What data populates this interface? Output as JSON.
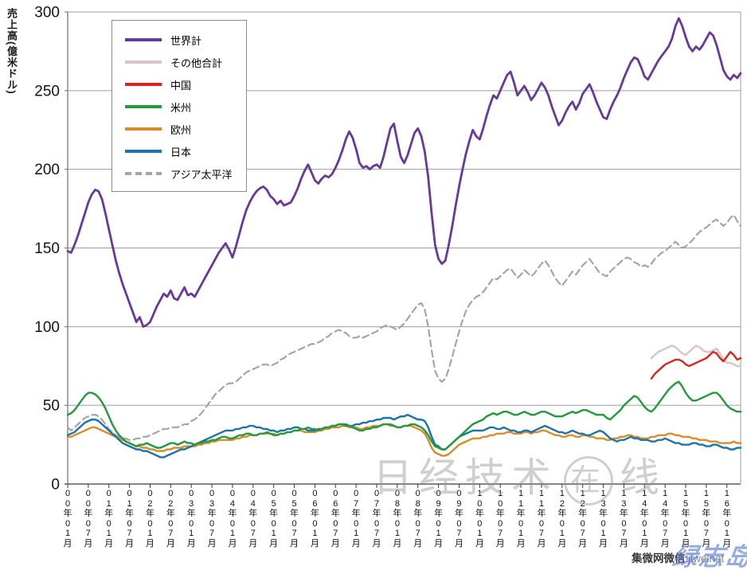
{
  "watermarks": {
    "center_prefix": "日经技术",
    "center_circled": "在",
    "center_suffix": "线",
    "bottom_right_cn": "集微网微信",
    "bottom_right_en": ":jiweinet",
    "bottom_right_script": "绿志岛"
  },
  "chart_data": {
    "type": "line",
    "title": "",
    "y_axis": {
      "label": "売上高(億米ドル)",
      "min": 0,
      "max": 300,
      "tick_step": 50
    },
    "y_tick_labels": [
      "300",
      "250",
      "200",
      "150",
      "100",
      "50",
      "0"
    ],
    "x_tick_labels": [
      "00年01月",
      "00年07月",
      "01年01月",
      "01年07月",
      "02年01月",
      "02年07月",
      "03年01月",
      "03年07月",
      "04年01月",
      "04年07月",
      "05年01月",
      "05年07月",
      "06年01月",
      "06年07月",
      "07年01月",
      "07年07月",
      "08年01月",
      "08年07月",
      "09年01月",
      "09年07月",
      "10年01月",
      "10年07月",
      "11年01月",
      "11年07月",
      "12年01月",
      "12年07月",
      "13年01月",
      "13年07月",
      "14年01月",
      "14年07月",
      "15年01月",
      "15年07月",
      "16年01月"
    ],
    "x_start": "2000-01",
    "months_total": 197,
    "grid": true,
    "legend_position": "top-left-inside",
    "series": [
      {
        "key": "world",
        "name": "世界計",
        "color": "#67399a",
        "width": 2.8,
        "dash": null,
        "start": 0,
        "values": [
          148,
          147,
          152,
          158,
          165,
          172,
          179,
          184,
          187,
          186,
          181,
          172,
          162,
          152,
          142,
          134,
          127,
          121,
          115,
          109,
          103,
          106,
          100,
          101,
          103,
          108,
          113,
          117,
          121,
          119,
          123,
          118,
          117,
          121,
          125,
          120,
          121,
          119,
          123,
          127,
          131,
          135,
          139,
          143,
          147,
          150,
          153,
          149,
          144,
          151,
          159,
          167,
          174,
          179,
          183,
          186,
          188,
          189,
          187,
          183,
          181,
          178,
          180,
          177,
          178,
          179,
          183,
          188,
          194,
          199,
          203,
          198,
          193,
          191,
          194,
          196,
          195,
          197,
          201,
          206,
          212,
          219,
          224,
          220,
          213,
          204,
          201,
          202,
          200,
          202,
          203,
          201,
          208,
          217,
          226,
          229,
          218,
          208,
          204,
          209,
          216,
          223,
          226,
          221,
          211,
          195,
          172,
          152,
          143,
          140,
          142,
          152,
          164,
          177,
          189,
          200,
          210,
          218,
          225,
          221,
          219,
          226,
          234,
          241,
          247,
          245,
          250,
          255,
          260,
          262,
          255,
          247,
          250,
          253,
          249,
          244,
          247,
          251,
          255,
          252,
          247,
          240,
          234,
          228,
          231,
          236,
          240,
          243,
          238,
          242,
          248,
          251,
          254,
          249,
          243,
          238,
          233,
          232,
          238,
          243,
          247,
          252,
          258,
          263,
          268,
          271,
          270,
          265,
          259,
          257,
          261,
          265,
          269,
          272,
          275,
          278,
          283,
          291,
          296,
          291,
          284,
          278,
          275,
          278,
          276,
          279,
          283,
          287,
          285,
          279,
          271,
          263,
          259,
          257,
          260,
          258,
          261
        ]
      },
      {
        "key": "other_total",
        "name": "その他合計",
        "color": "#d9c4c6",
        "width": 2.4,
        "dash": null,
        "start": 170,
        "values": [
          80,
          82,
          84,
          85,
          86,
          87,
          88,
          87,
          85,
          83,
          82,
          84,
          86,
          88,
          87,
          85,
          84,
          84,
          85,
          86,
          83,
          79,
          77,
          77,
          76,
          75,
          75
        ]
      },
      {
        "key": "china",
        "name": "中国",
        "color": "#dc241f",
        "width": 2.4,
        "dash": null,
        "start": 170,
        "values": [
          67,
          70,
          72,
          74,
          76,
          77,
          78,
          79,
          79,
          78,
          76,
          75,
          76,
          77,
          78,
          79,
          80,
          82,
          84,
          83,
          80,
          78,
          81,
          84,
          82,
          79,
          80
        ]
      },
      {
        "key": "americas",
        "name": "米州",
        "color": "#229a3d",
        "width": 2.4,
        "dash": null,
        "start": 0,
        "values": [
          44,
          45,
          47,
          50,
          53,
          56,
          58,
          58,
          57,
          55,
          52,
          48,
          43,
          38,
          34,
          31,
          29,
          27,
          26,
          25,
          24,
          25,
          25,
          26,
          25,
          24,
          23,
          23,
          24,
          25,
          26,
          26,
          25,
          26,
          27,
          26,
          26,
          25,
          26,
          26,
          27,
          27,
          28,
          28,
          29,
          30,
          30,
          29,
          29,
          30,
          31,
          31,
          32,
          32,
          31,
          31,
          32,
          32,
          33,
          32,
          31,
          31,
          32,
          32,
          33,
          33,
          34,
          34,
          35,
          35,
          36,
          35,
          35,
          34,
          35,
          36,
          36,
          37,
          37,
          38,
          38,
          37,
          37,
          36,
          35,
          34,
          34,
          35,
          35,
          36,
          36,
          37,
          38,
          38,
          38,
          37,
          36,
          36,
          37,
          37,
          38,
          38,
          37,
          36,
          34,
          31,
          27,
          24,
          23,
          22,
          22,
          24,
          26,
          28,
          30,
          32,
          34,
          36,
          38,
          39,
          40,
          41,
          43,
          44,
          45,
          44,
          45,
          46,
          46,
          45,
          44,
          44,
          45,
          46,
          45,
          44,
          44,
          45,
          46,
          46,
          45,
          44,
          43,
          43,
          43,
          44,
          45,
          46,
          45,
          46,
          47,
          47,
          46,
          45,
          44,
          44,
          44,
          42,
          41,
          43,
          45,
          47,
          50,
          52,
          54,
          56,
          55,
          52,
          49,
          47,
          46,
          48,
          51,
          54,
          57,
          60,
          62,
          64,
          65,
          62,
          58,
          55,
          53,
          53,
          54,
          55,
          56,
          57,
          58,
          58,
          56,
          53,
          50,
          48,
          47,
          46,
          46
        ]
      },
      {
        "key": "europe",
        "name": "欧州",
        "color": "#d88c2a",
        "width": 2.4,
        "dash": null,
        "start": 0,
        "values": [
          30,
          30,
          31,
          32,
          33,
          34,
          35,
          36,
          36,
          35,
          34,
          33,
          32,
          31,
          30,
          29,
          28,
          27,
          26,
          25,
          24,
          24,
          23,
          23,
          22,
          22,
          21,
          21,
          21,
          22,
          22,
          23,
          23,
          23,
          24,
          24,
          24,
          24,
          25,
          25,
          26,
          26,
          27,
          27,
          28,
          28,
          28,
          28,
          28,
          29,
          29,
          30,
          30,
          31,
          31,
          31,
          32,
          32,
          32,
          32,
          32,
          31,
          32,
          32,
          33,
          33,
          34,
          34,
          34,
          33,
          33,
          33,
          33,
          34,
          34,
          35,
          35,
          36,
          36,
          36,
          37,
          37,
          36,
          36,
          36,
          35,
          35,
          36,
          36,
          37,
          37,
          37,
          38,
          38,
          37,
          37,
          36,
          36,
          37,
          37,
          37,
          36,
          35,
          34,
          32,
          28,
          23,
          20,
          19,
          18,
          18,
          19,
          21,
          23,
          25,
          26,
          27,
          28,
          29,
          29,
          29,
          30,
          30,
          31,
          31,
          32,
          32,
          32,
          33,
          33,
          32,
          32,
          32,
          33,
          33,
          32,
          33,
          33,
          34,
          34,
          33,
          32,
          31,
          31,
          30,
          30,
          31,
          31,
          30,
          30,
          31,
          31,
          30,
          30,
          29,
          29,
          29,
          28,
          28,
          29,
          29,
          30,
          30,
          31,
          31,
          30,
          30,
          29,
          29,
          29,
          30,
          30,
          31,
          31,
          31,
          32,
          32,
          31,
          31,
          30,
          30,
          30,
          29,
          29,
          28,
          28,
          28,
          27,
          27,
          27,
          26,
          26,
          26,
          26,
          27,
          26,
          26
        ]
      },
      {
        "key": "japan",
        "name": "日本",
        "color": "#1e73a9",
        "width": 2.4,
        "dash": null,
        "start": 0,
        "values": [
          31,
          32,
          33,
          35,
          37,
          39,
          40,
          41,
          41,
          40,
          38,
          36,
          34,
          32,
          30,
          28,
          26,
          25,
          24,
          23,
          22,
          22,
          21,
          21,
          20,
          19,
          18,
          17,
          17,
          18,
          19,
          20,
          21,
          22,
          22,
          23,
          24,
          25,
          26,
          27,
          28,
          29,
          30,
          31,
          32,
          33,
          34,
          34,
          34,
          35,
          35,
          36,
          36,
          37,
          37,
          36,
          36,
          35,
          35,
          34,
          34,
          33,
          34,
          34,
          35,
          35,
          36,
          36,
          35,
          35,
          34,
          34,
          34,
          35,
          35,
          36,
          36,
          37,
          37,
          38,
          38,
          38,
          37,
          37,
          38,
          38,
          39,
          39,
          40,
          40,
          41,
          41,
          42,
          42,
          42,
          41,
          42,
          43,
          43,
          44,
          43,
          42,
          41,
          41,
          40,
          36,
          30,
          25,
          24,
          22,
          22,
          24,
          26,
          28,
          30,
          31,
          32,
          33,
          34,
          34,
          34,
          34,
          35,
          36,
          36,
          35,
          35,
          36,
          35,
          34,
          34,
          33,
          33,
          34,
          34,
          33,
          34,
          35,
          36,
          37,
          36,
          35,
          34,
          33,
          33,
          32,
          33,
          34,
          33,
          32,
          32,
          31,
          31,
          32,
          33,
          34,
          33,
          31,
          29,
          28,
          27,
          28,
          28,
          29,
          30,
          29,
          29,
          28,
          28,
          28,
          27,
          27,
          28,
          28,
          29,
          28,
          27,
          26,
          26,
          25,
          25,
          25,
          26,
          26,
          25,
          25,
          24,
          24,
          25,
          25,
          24,
          23,
          23,
          22,
          22,
          23,
          23
        ]
      },
      {
        "key": "asia_pacific",
        "name": "アジア太平洋",
        "color": "#a5a5a5",
        "width": 2.2,
        "dash": "8 5",
        "start": 0,
        "values": [
          36,
          34,
          36,
          38,
          40,
          42,
          43,
          44,
          44,
          43,
          41,
          38,
          35,
          33,
          31,
          30,
          29,
          29,
          28,
          28,
          29,
          29,
          30,
          30,
          31,
          32,
          33,
          34,
          35,
          35,
          36,
          36,
          36,
          37,
          38,
          38,
          40,
          41,
          43,
          45,
          48,
          51,
          54,
          57,
          59,
          61,
          63,
          64,
          64,
          65,
          67,
          69,
          71,
          72,
          73,
          74,
          75,
          76,
          76,
          75,
          76,
          77,
          79,
          80,
          82,
          83,
          84,
          85,
          86,
          87,
          88,
          89,
          89,
          90,
          91,
          93,
          94,
          96,
          97,
          98,
          97,
          96,
          94,
          93,
          93,
          94,
          93,
          94,
          95,
          96,
          97,
          99,
          100,
          101,
          100,
          99,
          98,
          100,
          102,
          105,
          108,
          111,
          114,
          115,
          111,
          100,
          85,
          72,
          67,
          65,
          67,
          73,
          81,
          89,
          97,
          104,
          110,
          114,
          117,
          119,
          120,
          122,
          125,
          128,
          131,
          130,
          132,
          134,
          136,
          137,
          134,
          131,
          133,
          136,
          134,
          132,
          134,
          137,
          140,
          142,
          139,
          135,
          131,
          128,
          126,
          129,
          132,
          135,
          133,
          136,
          139,
          141,
          143,
          140,
          137,
          134,
          133,
          132,
          135,
          137,
          139,
          141,
          143,
          144,
          143,
          141,
          140,
          138,
          139,
          138,
          140,
          143,
          145,
          147,
          148,
          150,
          152,
          154,
          152,
          150,
          151,
          153,
          155,
          158,
          160,
          162,
          163,
          165,
          167,
          168,
          166,
          164,
          166,
          169,
          171,
          167,
          164
        ]
      }
    ]
  }
}
